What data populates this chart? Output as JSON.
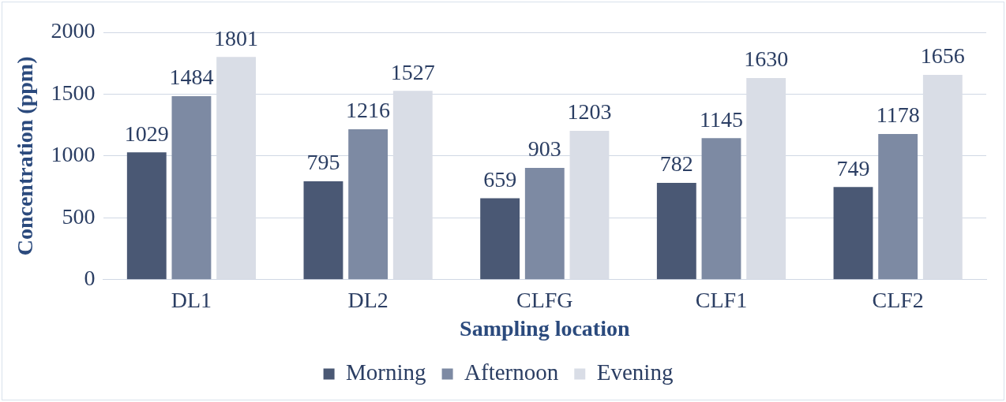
{
  "chart_data": {
    "type": "bar",
    "xlabel": "Sampling location",
    "ylabel": "Concentration (ppm)",
    "categories": [
      "DL1",
      "DL2",
      "CLFG",
      "CLF1",
      "CLF2"
    ],
    "series": [
      {
        "name": "Morning",
        "color": "#4a5874",
        "values": [
          1029,
          795,
          659,
          782,
          749
        ]
      },
      {
        "name": "Afternoon",
        "color": "#7d8aa3",
        "values": [
          1484,
          1216,
          903,
          1145,
          1178
        ]
      },
      {
        "name": "Evening",
        "color": "#d9dde6",
        "values": [
          1801,
          1527,
          1203,
          1630,
          1656
        ]
      }
    ],
    "ylim": [
      0,
      2000
    ],
    "yticks": [
      0,
      500,
      1000,
      1500,
      2000
    ],
    "grid": "y",
    "legend": "bottom",
    "data_labels": true
  }
}
